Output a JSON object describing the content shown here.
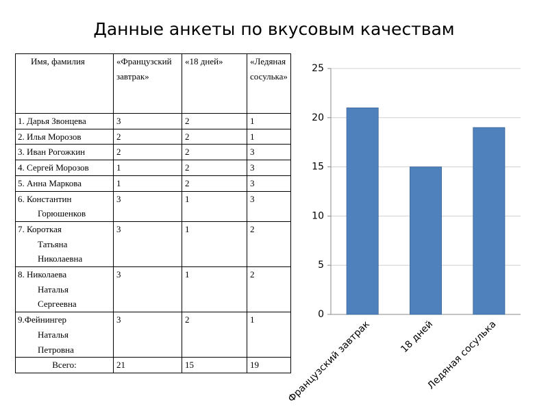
{
  "title": "Данные анкеты по вкусовым качествам",
  "table": {
    "header": [
      "Имя, фамилия",
      "«Французский завтрак»",
      "«18 дней»",
      "«Ледяная сосулька»"
    ],
    "rows": [
      [
        "1. Дарья Звонцева",
        3,
        2,
        1
      ],
      [
        "2. Илья Морозов",
        2,
        2,
        1
      ],
      [
        "3. Иван Рогожкин",
        2,
        2,
        3
      ],
      [
        "4. Сергей Морозов",
        1,
        2,
        3
      ],
      [
        "5. Анна Маркова",
        1,
        2,
        3
      ],
      [
        "6. Константин\nГорюшенков",
        3,
        1,
        3
      ],
      [
        "7.  Короткая\nТатьяна\nНиколаевна",
        3,
        1,
        2
      ],
      [
        "8. Николаева\nНаталья\nСергеевна",
        3,
        1,
        2
      ],
      [
        "9.Фейнингер\nНаталья\nПетровна",
        3,
        2,
        1
      ]
    ],
    "total": [
      "Всего:",
      21,
      15,
      19
    ]
  },
  "chart_data": {
    "type": "bar",
    "categories": [
      "Французский завтрак",
      "18 дней",
      "Ледяная сосулька"
    ],
    "values": [
      21,
      15,
      19
    ],
    "color": "#4f81bd",
    "ylim": [
      0,
      25
    ],
    "yticks": [
      0,
      5,
      10,
      15,
      20,
      25
    ],
    "grid": true
  }
}
